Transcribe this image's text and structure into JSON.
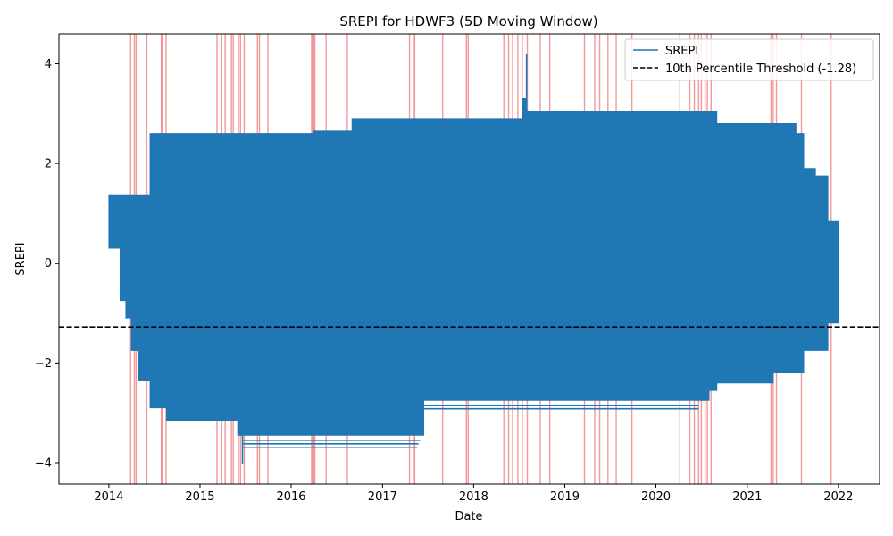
{
  "chart_data": {
    "type": "line",
    "title": "SREPI for HDWF3 (5D Moving Window)",
    "xlabel": "Date",
    "ylabel": "SREPI",
    "xlim": [
      "2013-06-15",
      "2022-06-15"
    ],
    "ylim": [
      -4.43,
      4.6
    ],
    "x_ticks": [
      {
        "value": "2014-01-01",
        "label": "2014"
      },
      {
        "value": "2015-01-01",
        "label": "2015"
      },
      {
        "value": "2016-01-01",
        "label": "2016"
      },
      {
        "value": "2017-01-01",
        "label": "2017"
      },
      {
        "value": "2018-01-01",
        "label": "2018"
      },
      {
        "value": "2019-01-01",
        "label": "2019"
      },
      {
        "value": "2020-01-01",
        "label": "2020"
      },
      {
        "value": "2021-01-01",
        "label": "2021"
      },
      {
        "value": "2022-01-01",
        "label": "2022"
      }
    ],
    "y_ticks": [
      {
        "value": -4,
        "label": "−4"
      },
      {
        "value": -2,
        "label": "−2"
      },
      {
        "value": 0,
        "label": "0"
      },
      {
        "value": 2,
        "label": "2"
      },
      {
        "value": 4,
        "label": "4"
      }
    ],
    "grid": false,
    "legend_position": "top-right",
    "series": [
      {
        "name": "SREPI",
        "color": "#1f77b4",
        "kind": "dense filled band (min/max envelope by date)",
        "envelope": [
          {
            "x": "2014-01-01",
            "upper": 1.37,
            "lower": 0.3
          },
          {
            "x": "2014-02-15",
            "upper": 1.37,
            "lower": -0.75
          },
          {
            "x": "2014-03-10",
            "upper": 1.37,
            "lower": -1.1
          },
          {
            "x": "2014-04-01",
            "upper": 1.37,
            "lower": -1.75
          },
          {
            "x": "2014-05-01",
            "upper": 1.37,
            "lower": -2.35
          },
          {
            "x": "2014-06-15",
            "upper": 2.6,
            "lower": -2.9
          },
          {
            "x": "2014-08-20",
            "upper": 2.6,
            "lower": -3.15
          },
          {
            "x": "2015-06-01",
            "upper": 2.6,
            "lower": -3.45
          },
          {
            "x": "2016-04-01",
            "upper": 2.65,
            "lower": -3.45
          },
          {
            "x": "2016-09-01",
            "upper": 2.9,
            "lower": -3.45
          },
          {
            "x": "2017-06-15",
            "upper": 2.9,
            "lower": -2.75
          },
          {
            "x": "2018-06-01",
            "upper": 2.9,
            "lower": -2.75
          },
          {
            "x": "2018-07-15",
            "upper": 3.3,
            "lower": -2.75
          },
          {
            "x": "2018-08-01",
            "upper": 3.05,
            "lower": -2.75
          },
          {
            "x": "2019-06-01",
            "upper": 3.05,
            "lower": -2.75
          },
          {
            "x": "2020-08-01",
            "upper": 3.05,
            "lower": -2.55
          },
          {
            "x": "2020-09-01",
            "upper": 2.8,
            "lower": -2.4
          },
          {
            "x": "2021-04-15",
            "upper": 2.8,
            "lower": -2.2
          },
          {
            "x": "2021-07-15",
            "upper": 2.6,
            "lower": -2.2
          },
          {
            "x": "2021-08-15",
            "upper": 1.9,
            "lower": -1.75
          },
          {
            "x": "2021-10-01",
            "upper": 1.75,
            "lower": -1.75
          },
          {
            "x": "2021-11-20",
            "upper": 0.85,
            "lower": -1.2
          },
          {
            "x": "2021-12-31",
            "upper": 0.85,
            "lower": 0.0
          }
        ],
        "spikes": [
          {
            "x": "2015-06-20",
            "value": -4.02
          },
          {
            "x": "2018-08-01",
            "value": 4.2
          }
        ],
        "low_traces": [
          {
            "x_start": "2015-06-20",
            "x_end": "2017-06-01",
            "value": -3.55
          },
          {
            "x_start": "2015-06-20",
            "x_end": "2017-05-25",
            "value": -3.62
          },
          {
            "x_start": "2015-06-20",
            "x_end": "2017-05-20",
            "value": -3.7
          },
          {
            "x_start": "2017-05-01",
            "x_end": "2020-06-20",
            "value": -2.85
          },
          {
            "x_start": "2017-05-01",
            "x_end": "2020-06-20",
            "value": -2.92
          }
        ]
      },
      {
        "name": "10th Percentile Threshold (-1.28)",
        "color": "#000000",
        "style": "dashed",
        "value": -1.28
      }
    ],
    "highlight_events": {
      "color": "#f08080",
      "dates": [
        "2014-03-29",
        "2014-04-13",
        "2014-04-20",
        "2014-06-02",
        "2014-07-30",
        "2014-08-03",
        "2014-08-18",
        "2015-03-10",
        "2015-03-29",
        "2015-04-12",
        "2015-05-07",
        "2015-05-14",
        "2015-06-04",
        "2015-06-12",
        "2015-06-27",
        "2015-08-19",
        "2015-08-27",
        "2015-09-30",
        "2016-03-23",
        "2016-03-27",
        "2016-04-01",
        "2016-04-05",
        "2016-05-20",
        "2016-08-13",
        "2017-04-19",
        "2017-05-04",
        "2017-05-10",
        "2017-08-30",
        "2017-12-03",
        "2017-12-10",
        "2018-05-02",
        "2018-05-21",
        "2018-06-06",
        "2018-06-27",
        "2018-07-15",
        "2018-08-04",
        "2018-09-25",
        "2018-11-02",
        "2019-03-21",
        "2019-05-01",
        "2019-05-21",
        "2019-06-23",
        "2019-07-26",
        "2019-09-27",
        "2020-04-06",
        "2020-05-16",
        "2020-06-03",
        "2020-06-20",
        "2020-07-01",
        "2020-07-16",
        "2020-07-25",
        "2020-08-09",
        "2021-04-06",
        "2021-04-15",
        "2021-04-28",
        "2021-08-06",
        "2021-12-03"
      ]
    }
  }
}
